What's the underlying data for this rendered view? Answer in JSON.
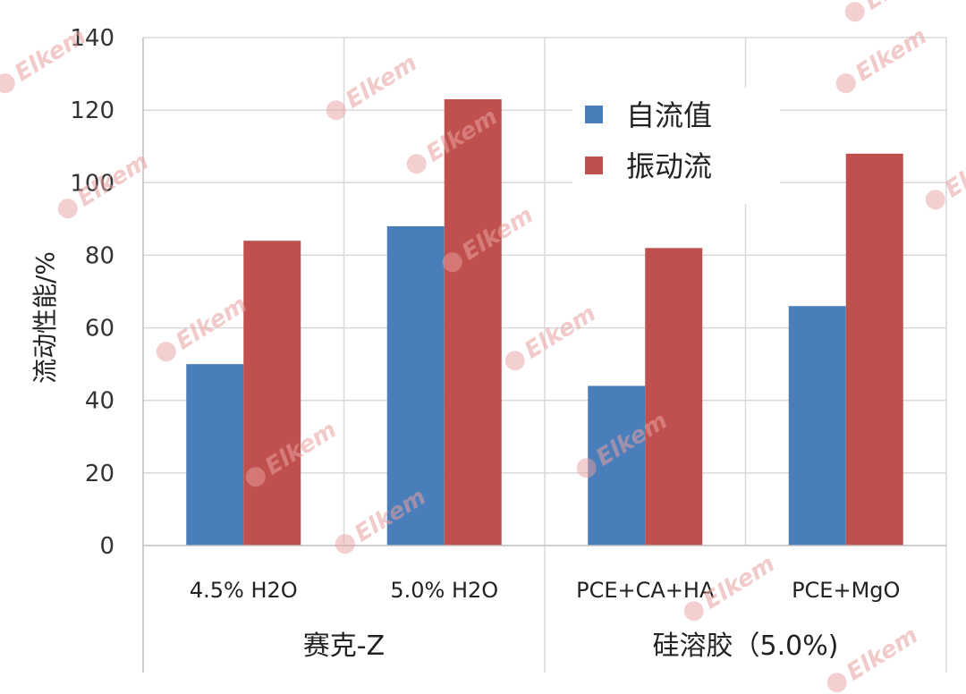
{
  "chart_data": {
    "type": "bar",
    "categories": [
      "4.5% H2O",
      "5.0% H2O",
      "PCE+CA+HA",
      "PCE+MgO"
    ],
    "groups": [
      "赛克-Z",
      "硅溶胶（5.0%)"
    ],
    "series": [
      {
        "name": "自流值",
        "values": [
          50,
          88,
          44,
          66
        ],
        "color": "#4a7ebb"
      },
      {
        "name": "振动流",
        "values": [
          84,
          123,
          82,
          108
        ],
        "color": "#c0504d"
      }
    ],
    "ylabel": "流动性能/%",
    "ylim": [
      0,
      140
    ],
    "yticks": [
      0,
      20,
      40,
      60,
      80,
      100,
      120,
      140
    ],
    "grid": true,
    "legend": "top-right",
    "watermark": "Elkem"
  }
}
